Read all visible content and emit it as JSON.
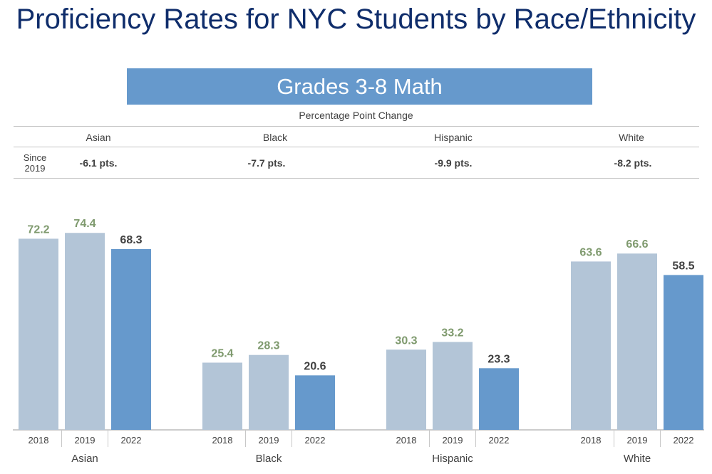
{
  "title": "Proficiency Rates for NYC Students by Race/Ethnicity",
  "banner": "Grades 3-8 Math",
  "change_table": {
    "header": "Percentage Point Change",
    "row_label": "Since 2019",
    "groups": [
      "Asian",
      "Black",
      "Hispanic",
      "White"
    ],
    "changes": [
      "-6.1 pts.",
      "-7.7 pts.",
      "-9.9 pts.",
      "-8.2 pts."
    ]
  },
  "colors": {
    "light_bar": "#b3c5d7",
    "dark_bar": "#6699cc",
    "light_label": "#7f9a6e",
    "dark_label": "#404040",
    "title": "#0f2d6b"
  },
  "chart_data": {
    "type": "bar",
    "title": "Grades 3-8 Math",
    "xlabel": "",
    "ylabel": "",
    "categories": [
      "Asian",
      "Black",
      "Hispanic",
      "White"
    ],
    "years": [
      "2018",
      "2019",
      "2022"
    ],
    "series": [
      {
        "name": "2018",
        "values": [
          72.2,
          25.4,
          30.3,
          63.6
        ]
      },
      {
        "name": "2019",
        "values": [
          74.4,
          28.3,
          33.2,
          66.6
        ]
      },
      {
        "name": "2022",
        "values": [
          68.3,
          20.6,
          23.3,
          58.5
        ]
      }
    ],
    "labels": [
      [
        "72.2",
        "74.4",
        "68.3"
      ],
      [
        "25.4",
        "28.3",
        "20.6"
      ],
      [
        "30.3",
        "33.2",
        "23.3"
      ],
      [
        "63.6",
        "66.6",
        "58.5"
      ]
    ],
    "ylim": [
      0,
      100
    ],
    "grid": false,
    "legend": "none"
  }
}
